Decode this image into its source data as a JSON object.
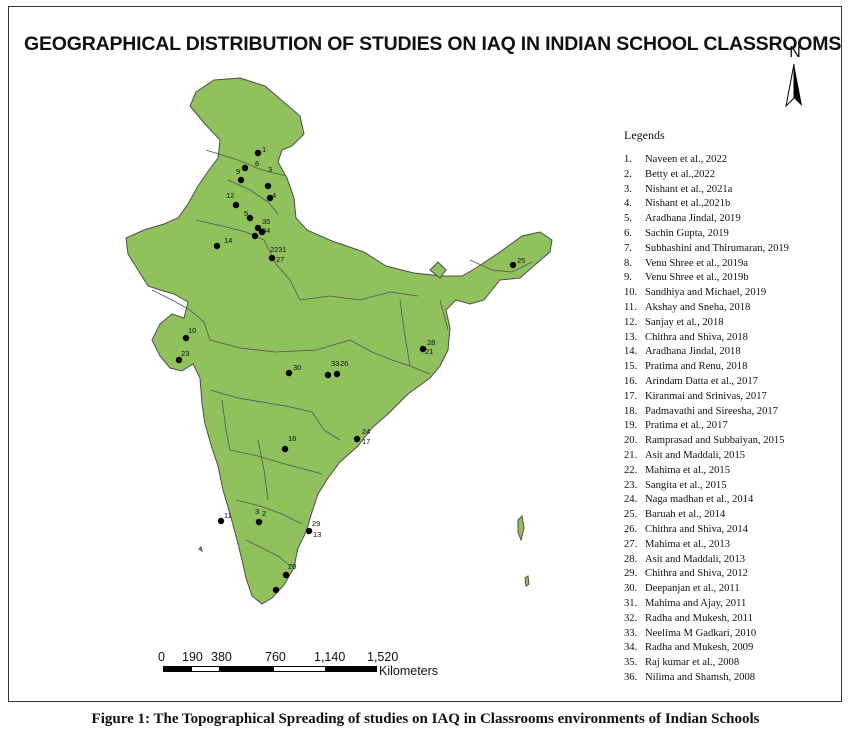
{
  "title": "GEOGRAPHICAL DISTRIBUTION OF STUDIES ON IAQ IN INDIAN SCHOOL CLASSROOMS",
  "north_label": "N",
  "legend": {
    "title": "Legends",
    "items": [
      {
        "num": "1.",
        "text": "Naveen et al., 2022"
      },
      {
        "num": "2.",
        "text": "Betty et al.,2022"
      },
      {
        "num": "3.",
        "text": "Nishant et al., 2021a"
      },
      {
        "num": "4.",
        "text": "Nishant et al.,2021b"
      },
      {
        "num": "5.",
        "text": "Aradhana Jindal, 2019"
      },
      {
        "num": "6.",
        "text": "Sachin Gupta, 2019"
      },
      {
        "num": "7.",
        "text": "Subhashini and Thirumaran, 2019"
      },
      {
        "num": "8.",
        "text": "Venu Shree et al., 2019a"
      },
      {
        "num": "9.",
        "text": "Venu Shree et al., 2019b"
      },
      {
        "num": "10.",
        "text": "Sandhiya and Michael, 2019"
      },
      {
        "num": "11.",
        "text": "Akshay and Sneha, 2018"
      },
      {
        "num": "12.",
        "text": "Sanjay et al., 2018"
      },
      {
        "num": "13.",
        "text": "Chithra and Shiva, 2018"
      },
      {
        "num": "14.",
        "text": "Aradhana Jindal, 2018"
      },
      {
        "num": "15.",
        "text": "Pratima and Renu, 2018"
      },
      {
        "num": "16.",
        "text": "Arindam Datta et al., 2017"
      },
      {
        "num": "17.",
        "text": "Kiranmai and Srinivas, 2017"
      },
      {
        "num": "18.",
        "text": "Padmavathi and Sireesha, 2017"
      },
      {
        "num": "19.",
        "text": "Pratima et al., 2017"
      },
      {
        "num": "20.",
        "text": "Ramprasad and Subbaiyan, 2015"
      },
      {
        "num": "21.",
        "text": "Asit and Maddali, 2015"
      },
      {
        "num": "22.",
        "text": "Mahima et al., 2015"
      },
      {
        "num": "23.",
        "text": "Sangita et al., 2015"
      },
      {
        "num": "24.",
        "text": "Naga madhan et al., 2014"
      },
      {
        "num": "25.",
        "text": "Baruah et al., 2014"
      },
      {
        "num": "26.",
        "text": "Chithra and Shiva, 2014"
      },
      {
        "num": "27.",
        "text": "Mahima et al., 2013"
      },
      {
        "num": "28.",
        "text": "Asit and Maddali, 2013"
      },
      {
        "num": "29.",
        "text": "Chithra and Shiva, 2012"
      },
      {
        "num": "30.",
        "text": "Deepanjan et al., 2011"
      },
      {
        "num": "31.",
        "text": "Mahima and Ajay, 2011"
      },
      {
        "num": "32.",
        "text": "Radha and Mukesh, 2011"
      },
      {
        "num": "33.",
        "text": "Neelima M Gadkari, 2010"
      },
      {
        "num": "34.",
        "text": "Radha and Mukesh, 2009"
      },
      {
        "num": "35.",
        "text": "Raj kumar et al., 2008"
      },
      {
        "num": "36.",
        "text": "Nilima and Shamsh, 2008"
      }
    ]
  },
  "scale_bar": {
    "labels": [
      "0",
      "190",
      "380",
      "760",
      "1,140",
      "1,520"
    ],
    "unit": "Kilometers"
  },
  "map_labels": [
    "1",
    "9",
    "6",
    "3",
    "4",
    "12",
    "35",
    "34",
    "5",
    "14",
    "2231",
    "27",
    "25",
    "10",
    "23",
    "28",
    "21",
    "30",
    "33",
    "26",
    "16",
    "24",
    "17",
    "11",
    "3",
    "2",
    "29",
    "13",
    "20"
  ],
  "colors": {
    "land": "#90c15c",
    "border": "#5a5a5a",
    "dot": "#000000"
  },
  "caption": "Figure 1: The Topographical Spreading of studies on IAQ in Classrooms environments of Indian Schools"
}
